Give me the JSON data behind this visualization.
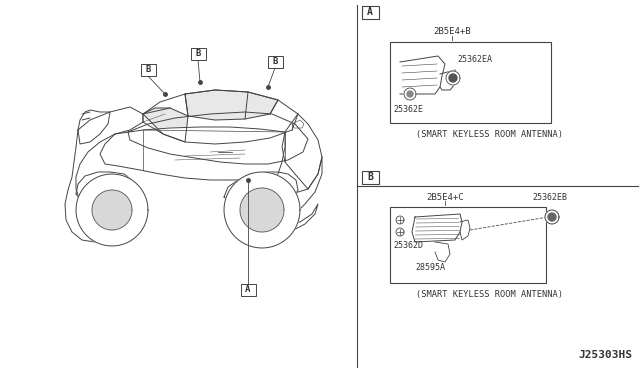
{
  "bg_color": "#ffffff",
  "line_color": "#444444",
  "text_color": "#333333",
  "title_code": "J25303HS",
  "part_A_top": "2B5E4+B",
  "part_A_label1": "25362EA",
  "part_A_label2": "25362E",
  "part_B_top": "2B5E4+C",
  "part_B_label1": "25362EB",
  "part_B_label2": "25362D",
  "part_B_label3": "28595A",
  "caption_A": "(SMART KEYLESS ROOM ANTENNA)",
  "caption_B": "(SMART KEYLESS ROOM ANTENNA)"
}
